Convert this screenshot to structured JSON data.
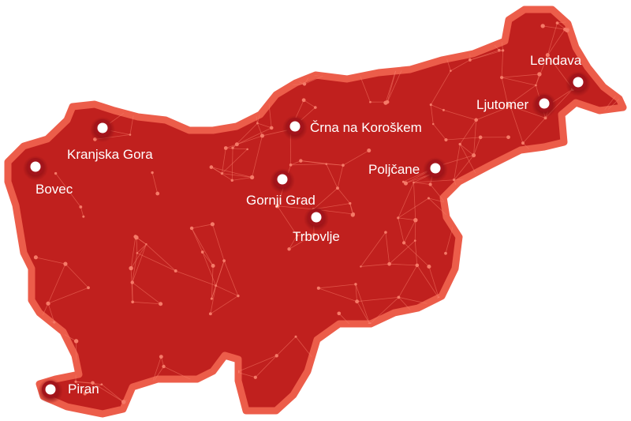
{
  "map": {
    "region_fill": "#c0201e",
    "border_color": "#ec5d4a",
    "network_color": "#f57a68",
    "cities": [
      {
        "name": "Lendava"
      },
      {
        "name": "Ljutomer"
      },
      {
        "name": "Črna na Koroškem"
      },
      {
        "name": "Kranjska Gora"
      },
      {
        "name": "Poljčane"
      },
      {
        "name": "Bovec"
      },
      {
        "name": "Gornji Grad"
      },
      {
        "name": "Trbovlje"
      },
      {
        "name": "Piran"
      }
    ]
  }
}
